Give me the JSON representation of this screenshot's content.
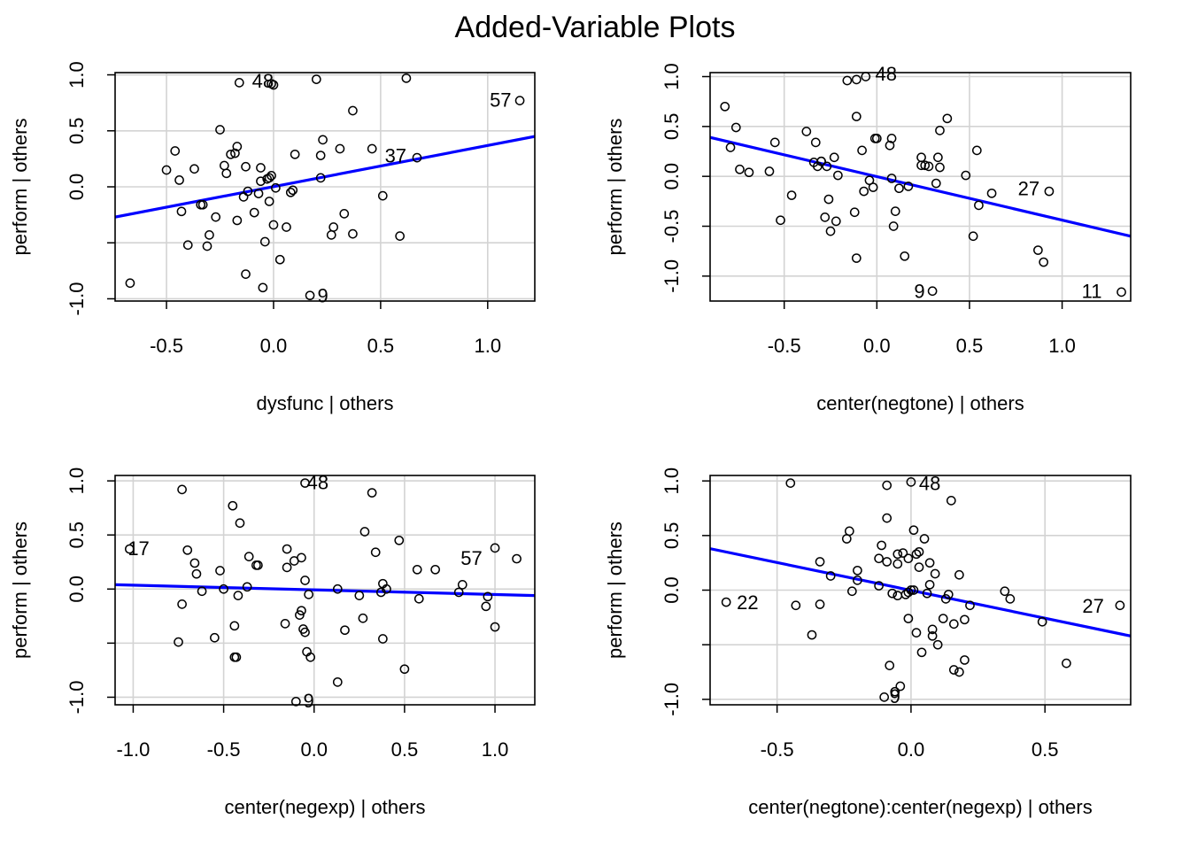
{
  "title": "Added-Variable Plots",
  "colors": {
    "fit_line": "#0000ff",
    "grid": "#d3d3d3",
    "frame": "#000000",
    "points": "#000000"
  },
  "chart_data": [
    {
      "type": "scatter",
      "xlabel": "dysfunc | others",
      "ylabel": "perform  | others",
      "xlim": [
        -0.74,
        1.22
      ],
      "ylim": [
        -1.02,
        1.02
      ],
      "xticks": [
        -0.5,
        0.0,
        0.5,
        1.0
      ],
      "xtick_labels": [
        "-0.5",
        "0.0",
        "0.5",
        "1.0"
      ],
      "yticks": [
        -1.0,
        -0.5,
        0.0,
        0.5,
        1.0
      ],
      "ytick_labels": [
        "-1.0",
        "",
        "0.0",
        "0.5",
        "1.0"
      ],
      "grid": true,
      "fit_line": {
        "x": [
          -0.74,
          1.22
        ],
        "y": [
          -0.27,
          0.45
        ]
      },
      "labels": [
        {
          "text": "48",
          "x": -0.05,
          "y": 0.95
        },
        {
          "text": "57",
          "x": 1.06,
          "y": 0.78
        },
        {
          "text": "37",
          "x": 0.57,
          "y": 0.28
        },
        {
          "text": "9",
          "x": 0.23,
          "y": -0.97
        }
      ],
      "points": [
        [
          -0.67,
          -0.86
        ],
        [
          -0.5,
          0.15
        ],
        [
          -0.46,
          0.32
        ],
        [
          -0.44,
          0.06
        ],
        [
          -0.43,
          -0.22
        ],
        [
          -0.4,
          -0.52
        ],
        [
          -0.37,
          0.16
        ],
        [
          -0.34,
          -0.16
        ],
        [
          -0.33,
          -0.16
        ],
        [
          -0.31,
          -0.53
        ],
        [
          -0.3,
          -0.43
        ],
        [
          -0.27,
          -0.27
        ],
        [
          -0.25,
          0.51
        ],
        [
          -0.23,
          0.19
        ],
        [
          -0.22,
          0.12
        ],
        [
          -0.2,
          0.29
        ],
        [
          -0.18,
          0.3
        ],
        [
          -0.17,
          0.36
        ],
        [
          -0.17,
          -0.3
        ],
        [
          -0.16,
          0.93
        ],
        [
          -0.14,
          -0.09
        ],
        [
          -0.13,
          -0.78
        ],
        [
          -0.13,
          0.18
        ],
        [
          -0.12,
          -0.04
        ],
        [
          -0.09,
          -0.23
        ],
        [
          -0.07,
          -0.06
        ],
        [
          -0.06,
          0.17
        ],
        [
          -0.06,
          0.05
        ],
        [
          -0.05,
          -0.9
        ],
        [
          -0.04,
          -0.49
        ],
        [
          -0.03,
          0.07
        ],
        [
          -0.02,
          0.08
        ],
        [
          -0.02,
          -0.13
        ],
        [
          -0.01,
          0.92
        ],
        [
          -0.01,
          0.1
        ],
        [
          0.0,
          0.91
        ],
        [
          0.0,
          -0.34
        ],
        [
          0.01,
          -0.01
        ],
        [
          0.03,
          -0.65
        ],
        [
          0.06,
          -0.36
        ],
        [
          0.08,
          -0.05
        ],
        [
          0.09,
          -0.03
        ],
        [
          0.1,
          0.29
        ],
        [
          0.17,
          -0.97
        ],
        [
          0.2,
          0.96
        ],
        [
          0.22,
          0.28
        ],
        [
          0.22,
          0.08
        ],
        [
          0.23,
          0.42
        ],
        [
          0.27,
          -0.43
        ],
        [
          0.28,
          -0.36
        ],
        [
          0.31,
          0.34
        ],
        [
          0.33,
          -0.24
        ],
        [
          0.37,
          0.68
        ],
        [
          0.37,
          -0.42
        ],
        [
          0.46,
          0.34
        ],
        [
          0.51,
          -0.08
        ],
        [
          0.59,
          -0.44
        ],
        [
          0.62,
          0.97
        ],
        [
          0.67,
          0.26
        ],
        [
          1.15,
          0.77
        ]
      ]
    },
    {
      "type": "scatter",
      "xlabel": "center(negtone) | others",
      "ylabel": "perform  | others",
      "xlim": [
        -0.9,
        1.37
      ],
      "ylim": [
        -1.25,
        1.04
      ],
      "xticks": [
        -0.5,
        0.0,
        0.5,
        1.0
      ],
      "xtick_labels": [
        "-0.5",
        "0.0",
        "0.5",
        "1.0"
      ],
      "yticks": [
        -1.0,
        -0.5,
        0.0,
        0.5,
        1.0
      ],
      "ytick_labels": [
        "-1.0",
        "-0.5",
        "0.0",
        "0.5",
        "1.0"
      ],
      "grid": true,
      "fit_line": {
        "x": [
          -0.9,
          1.37
        ],
        "y": [
          0.39,
          -0.6
        ]
      },
      "labels": [
        {
          "text": "48",
          "x": 0.05,
          "y": 1.03
        },
        {
          "text": "27",
          "x": 0.82,
          "y": -0.12
        },
        {
          "text": "9",
          "x": 0.23,
          "y": -1.15
        },
        {
          "text": "11",
          "x": 1.16,
          "y": -1.15
        }
      ],
      "points": [
        [
          -0.82,
          0.7
        ],
        [
          -0.79,
          0.29
        ],
        [
          -0.76,
          0.49
        ],
        [
          -0.74,
          0.07
        ],
        [
          -0.69,
          0.04
        ],
        [
          -0.58,
          0.05
        ],
        [
          -0.55,
          0.34
        ],
        [
          -0.52,
          -0.44
        ],
        [
          -0.46,
          -0.19
        ],
        [
          -0.38,
          0.45
        ],
        [
          -0.34,
          0.14
        ],
        [
          -0.33,
          0.34
        ],
        [
          -0.32,
          0.1
        ],
        [
          -0.3,
          0.15
        ],
        [
          -0.3,
          0.15
        ],
        [
          -0.28,
          -0.41
        ],
        [
          -0.27,
          0.1
        ],
        [
          -0.26,
          -0.23
        ],
        [
          -0.25,
          -0.55
        ],
        [
          -0.23,
          0.19
        ],
        [
          -0.22,
          -0.45
        ],
        [
          -0.21,
          0.01
        ],
        [
          -0.16,
          0.96
        ],
        [
          -0.12,
          -0.36
        ],
        [
          -0.11,
          0.97
        ],
        [
          -0.11,
          0.6
        ],
        [
          -0.11,
          -0.82
        ],
        [
          -0.08,
          0.26
        ],
        [
          -0.07,
          -0.15
        ],
        [
          -0.06,
          1.0
        ],
        [
          -0.04,
          -0.04
        ],
        [
          -0.02,
          -0.11
        ],
        [
          -0.01,
          0.38
        ],
        [
          0.0,
          0.38
        ],
        [
          0.07,
          0.31
        ],
        [
          0.08,
          -0.02
        ],
        [
          0.08,
          0.38
        ],
        [
          0.09,
          -0.5
        ],
        [
          0.1,
          -0.35
        ],
        [
          0.12,
          -0.12
        ],
        [
          0.15,
          -0.8
        ],
        [
          0.17,
          -0.1
        ],
        [
          0.24,
          0.19
        ],
        [
          0.24,
          0.11
        ],
        [
          0.26,
          0.11
        ],
        [
          0.28,
          0.1
        ],
        [
          0.3,
          -1.15
        ],
        [
          0.32,
          -0.07
        ],
        [
          0.33,
          0.19
        ],
        [
          0.34,
          0.46
        ],
        [
          0.34,
          0.09
        ],
        [
          0.38,
          0.58
        ],
        [
          0.48,
          0.01
        ],
        [
          0.52,
          -0.6
        ],
        [
          0.54,
          0.26
        ],
        [
          0.55,
          -0.29
        ],
        [
          0.62,
          -0.17
        ],
        [
          0.87,
          -0.74
        ],
        [
          0.9,
          -0.86
        ],
        [
          0.93,
          -0.15
        ],
        [
          1.32,
          -1.16
        ]
      ]
    },
    {
      "type": "scatter",
      "xlabel": "center(negexp) | others",
      "ylabel": "perform  | others",
      "xlim": [
        -1.1,
        1.22
      ],
      "ylim": [
        -1.07,
        1.05
      ],
      "xticks": [
        -1.0,
        -0.5,
        0.0,
        0.5,
        1.0
      ],
      "xtick_labels": [
        "-1.0",
        "-0.5",
        "0.0",
        "0.5",
        "1.0"
      ],
      "yticks": [
        -1.0,
        -0.5,
        0.0,
        0.5,
        1.0
      ],
      "ytick_labels": [
        "-1.0",
        "",
        "0.0",
        "0.5",
        "1.0"
      ],
      "grid": true,
      "fit_line": {
        "x": [
          -1.1,
          1.22
        ],
        "y": [
          0.04,
          -0.06
        ]
      },
      "labels": [
        {
          "text": "48",
          "x": 0.02,
          "y": 0.99
        },
        {
          "text": "17",
          "x": -0.97,
          "y": 0.38
        },
        {
          "text": "57",
          "x": 0.87,
          "y": 0.29
        },
        {
          "text": "9",
          "x": -0.03,
          "y": -1.03
        }
      ],
      "points": [
        [
          -1.02,
          0.37
        ],
        [
          -0.75,
          -0.49
        ],
        [
          -0.73,
          0.92
        ],
        [
          -0.73,
          -0.14
        ],
        [
          -0.7,
          0.36
        ],
        [
          -0.66,
          0.24
        ],
        [
          -0.65,
          0.14
        ],
        [
          -0.62,
          -0.02
        ],
        [
          -0.55,
          -0.45
        ],
        [
          -0.52,
          0.17
        ],
        [
          -0.5,
          0.0
        ],
        [
          -0.45,
          0.77
        ],
        [
          -0.44,
          -0.34
        ],
        [
          -0.44,
          -0.63
        ],
        [
          -0.43,
          -0.63
        ],
        [
          -0.42,
          -0.06
        ],
        [
          -0.41,
          0.61
        ],
        [
          -0.37,
          0.02
        ],
        [
          -0.36,
          0.3
        ],
        [
          -0.32,
          0.22
        ],
        [
          -0.31,
          0.22
        ],
        [
          -0.16,
          -0.32
        ],
        [
          -0.15,
          0.37
        ],
        [
          -0.15,
          0.2
        ],
        [
          -0.11,
          0.26
        ],
        [
          -0.1,
          -1.04
        ],
        [
          -0.08,
          -0.24
        ],
        [
          -0.07,
          -0.2
        ],
        [
          -0.07,
          0.29
        ],
        [
          -0.06,
          -0.37
        ],
        [
          -0.05,
          0.08
        ],
        [
          -0.05,
          0.98
        ],
        [
          -0.05,
          -0.4
        ],
        [
          -0.04,
          -0.58
        ],
        [
          -0.03,
          -0.05
        ],
        [
          -0.02,
          -0.63
        ],
        [
          0.13,
          0.0
        ],
        [
          0.13,
          -0.86
        ],
        [
          0.17,
          -0.38
        ],
        [
          0.25,
          -0.06
        ],
        [
          0.27,
          -0.27
        ],
        [
          0.28,
          0.53
        ],
        [
          0.32,
          0.89
        ],
        [
          0.34,
          0.34
        ],
        [
          0.37,
          -0.03
        ],
        [
          0.38,
          0.05
        ],
        [
          0.38,
          -0.46
        ],
        [
          0.4,
          0.0
        ],
        [
          0.47,
          0.45
        ],
        [
          0.5,
          -0.74
        ],
        [
          0.57,
          0.18
        ],
        [
          0.58,
          -0.09
        ],
        [
          0.67,
          0.18
        ],
        [
          0.8,
          -0.03
        ],
        [
          0.82,
          0.04
        ],
        [
          0.95,
          -0.16
        ],
        [
          0.96,
          -0.07
        ],
        [
          1.0,
          0.38
        ],
        [
          1.0,
          -0.35
        ],
        [
          1.12,
          0.28
        ]
      ]
    },
    {
      "type": "scatter",
      "xlabel": "center(negtone):center(negexp) | others",
      "ylabel": "perform  | others",
      "xlim": [
        -0.75,
        0.82
      ],
      "ylim": [
        -1.05,
        1.05
      ],
      "xticks": [
        -0.5,
        0.0,
        0.5
      ],
      "xtick_labels": [
        "-0.5",
        "0.0",
        "0.5"
      ],
      "yticks": [
        -1.0,
        -0.5,
        0.0,
        0.5,
        1.0
      ],
      "ytick_labels": [
        "-1.0",
        "",
        "0.0",
        "0.5",
        "1.0"
      ],
      "grid": true,
      "fit_line": {
        "x": [
          -0.75,
          0.82
        ],
        "y": [
          0.38,
          -0.42
        ]
      },
      "labels": [
        {
          "text": "48",
          "x": 0.07,
          "y": 0.98
        },
        {
          "text": "22",
          "x": -0.61,
          "y": -0.11
        },
        {
          "text": "27",
          "x": 0.68,
          "y": -0.14
        },
        {
          "text": "9",
          "x": -0.06,
          "y": -0.97
        }
      ],
      "points": [
        [
          -0.69,
          -0.11
        ],
        [
          -0.45,
          0.98
        ],
        [
          -0.43,
          -0.14
        ],
        [
          -0.37,
          -0.41
        ],
        [
          -0.34,
          -0.13
        ],
        [
          -0.34,
          0.26
        ],
        [
          -0.3,
          0.13
        ],
        [
          -0.24,
          0.47
        ],
        [
          -0.23,
          0.54
        ],
        [
          -0.22,
          -0.01
        ],
        [
          -0.2,
          0.09
        ],
        [
          -0.2,
          0.18
        ],
        [
          -0.12,
          0.04
        ],
        [
          -0.12,
          0.29
        ],
        [
          -0.11,
          0.41
        ],
        [
          -0.1,
          -0.98
        ],
        [
          -0.09,
          0.26
        ],
        [
          -0.09,
          0.96
        ],
        [
          -0.09,
          0.66
        ],
        [
          -0.08,
          -0.69
        ],
        [
          -0.07,
          -0.03
        ],
        [
          -0.06,
          -0.93
        ],
        [
          -0.05,
          0.33
        ],
        [
          -0.05,
          0.24
        ],
        [
          -0.05,
          -0.05
        ],
        [
          -0.04,
          -0.88
        ],
        [
          -0.03,
          0.34
        ],
        [
          -0.02,
          -0.04
        ],
        [
          -0.01,
          0.29
        ],
        [
          -0.01,
          -0.02
        ],
        [
          -0.01,
          -0.26
        ],
        [
          0.0,
          0.0
        ],
        [
          0.0,
          0.99
        ],
        [
          0.01,
          0.55
        ],
        [
          0.01,
          0.0
        ],
        [
          0.02,
          0.33
        ],
        [
          0.02,
          -0.39
        ],
        [
          0.03,
          0.21
        ],
        [
          0.03,
          0.35
        ],
        [
          0.04,
          -0.57
        ],
        [
          0.05,
          0.47
        ],
        [
          0.06,
          -0.03
        ],
        [
          0.07,
          0.05
        ],
        [
          0.07,
          0.25
        ],
        [
          0.08,
          -0.36
        ],
        [
          0.08,
          -0.42
        ],
        [
          0.09,
          0.15
        ],
        [
          0.1,
          -0.5
        ],
        [
          0.12,
          -0.26
        ],
        [
          0.13,
          -0.08
        ],
        [
          0.14,
          -0.04
        ],
        [
          0.15,
          0.82
        ],
        [
          0.16,
          -0.73
        ],
        [
          0.16,
          -0.31
        ],
        [
          0.18,
          0.14
        ],
        [
          0.18,
          -0.75
        ],
        [
          0.2,
          -0.64
        ],
        [
          0.2,
          -0.27
        ],
        [
          0.22,
          -0.14
        ],
        [
          0.35,
          -0.01
        ],
        [
          0.37,
          -0.08
        ],
        [
          0.49,
          -0.29
        ],
        [
          0.58,
          -0.67
        ],
        [
          0.78,
          -0.14
        ]
      ]
    }
  ]
}
